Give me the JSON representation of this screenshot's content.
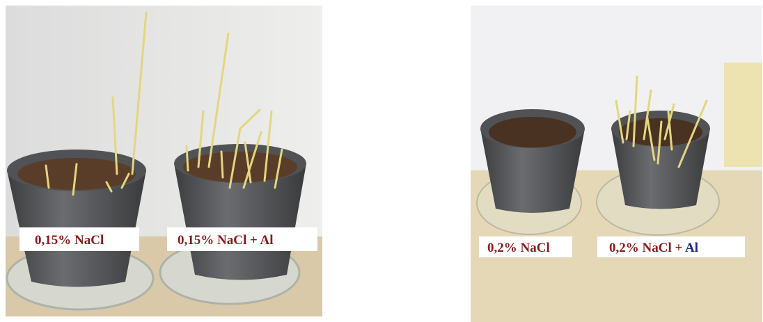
{
  "photos": [
    {
      "labels": [
        {
          "text": "0,15% NaCl"
        },
        {
          "text": "0,15% NaCl + Al"
        }
      ]
    },
    {
      "labels": [
        {
          "text": "0,2% NaCl"
        },
        {
          "text": "0,2% NaCl +",
          "highlight": "Al"
        }
      ]
    }
  ]
}
